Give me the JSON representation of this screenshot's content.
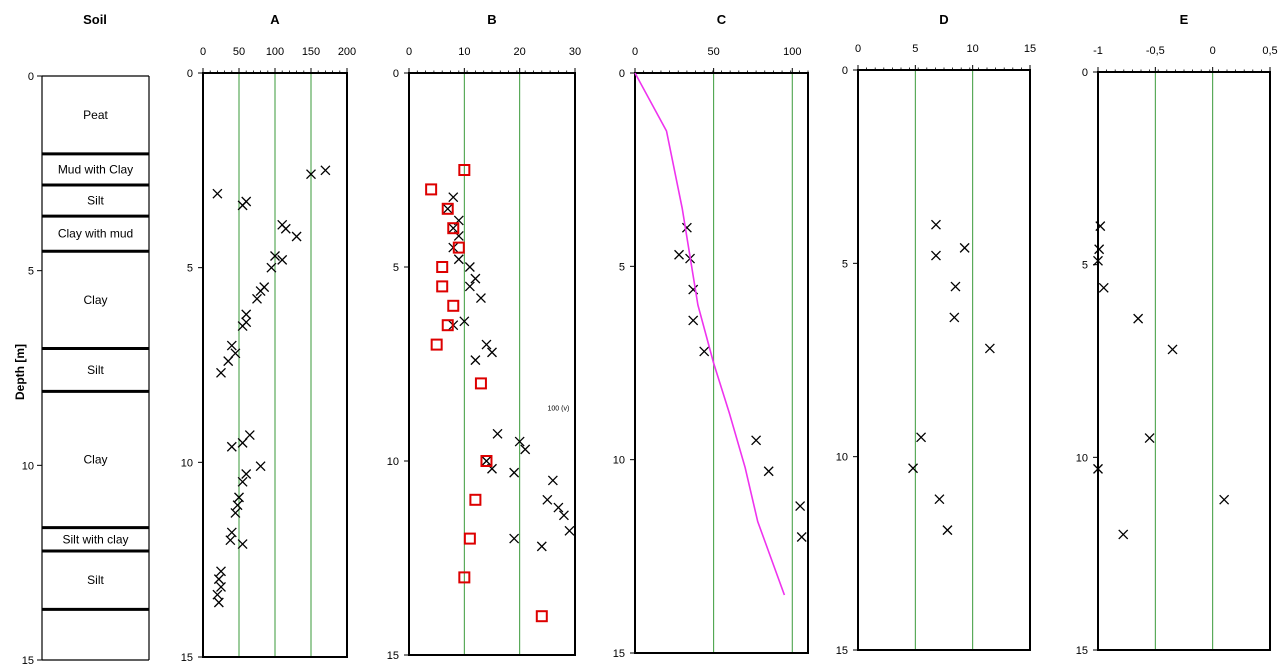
{
  "ylabel": "Depth [m]",
  "soil_column": {
    "title": "Soil",
    "depth_ticks": [
      "0",
      "5",
      "10",
      "15"
    ],
    "layers": [
      {
        "name": "Peat",
        "top": 0,
        "bottom": 2.0
      },
      {
        "name": "Mud with Clay",
        "top": 2.0,
        "bottom": 2.8
      },
      {
        "name": "Silt",
        "top": 2.8,
        "bottom": 3.6
      },
      {
        "name": "Clay with mud",
        "top": 3.6,
        "bottom": 4.5
      },
      {
        "name": "Clay",
        "top": 4.5,
        "bottom": 7.0
      },
      {
        "name": "Silt",
        "top": 7.0,
        "bottom": 8.1
      },
      {
        "name": "Clay",
        "top": 8.1,
        "bottom": 11.6
      },
      {
        "name": "Silt with clay",
        "top": 11.6,
        "bottom": 12.2
      },
      {
        "name": "Silt",
        "top": 12.2,
        "bottom": 13.7
      },
      {
        "name": "",
        "top": 13.7,
        "bottom": 15
      }
    ]
  },
  "chart_data": [
    {
      "type": "scatter",
      "title": "A",
      "xlim": [
        0,
        200
      ],
      "xticks": [
        0,
        50,
        100,
        150,
        200
      ],
      "xtick_labels": [
        "0",
        "50",
        "100",
        "150",
        "200"
      ],
      "ylim": [
        0,
        15
      ],
      "yticks": [
        0,
        5,
        10,
        15
      ],
      "ytick_labels": [
        "0",
        "5",
        "10",
        "15"
      ],
      "gridlines_x": [
        50,
        100,
        150
      ],
      "series": [
        {
          "marker": "x",
          "color": "#000000",
          "points": [
            [
              170,
              2.5
            ],
            [
              150,
              2.6
            ],
            [
              20,
              3.1
            ],
            [
              60,
              3.3
            ],
            [
              55,
              3.4
            ],
            [
              110,
              3.9
            ],
            [
              115,
              4.0
            ],
            [
              130,
              4.2
            ],
            [
              100,
              4.7
            ],
            [
              110,
              4.8
            ],
            [
              95,
              5.0
            ],
            [
              85,
              5.5
            ],
            [
              80,
              5.6
            ],
            [
              75,
              5.8
            ],
            [
              60,
              6.2
            ],
            [
              60,
              6.4
            ],
            [
              55,
              6.5
            ],
            [
              40,
              7.0
            ],
            [
              45,
              7.2
            ],
            [
              35,
              7.4
            ],
            [
              25,
              7.7
            ],
            [
              65,
              9.3
            ],
            [
              55,
              9.5
            ],
            [
              40,
              9.6
            ],
            [
              80,
              10.1
            ],
            [
              60,
              10.3
            ],
            [
              55,
              10.5
            ],
            [
              50,
              10.9
            ],
            [
              48,
              11.1
            ],
            [
              45,
              11.3
            ],
            [
              40,
              11.8
            ],
            [
              38,
              12.0
            ],
            [
              55,
              12.1
            ],
            [
              25,
              12.8
            ],
            [
              22,
              13.0
            ],
            [
              25,
              13.2
            ],
            [
              20,
              13.4
            ],
            [
              22,
              13.6
            ]
          ]
        }
      ]
    },
    {
      "type": "scatter",
      "title": "B",
      "xlim": [
        0,
        30
      ],
      "xticks": [
        0,
        10,
        20,
        30
      ],
      "xtick_labels": [
        "0",
        "10",
        "20",
        "30"
      ],
      "ylim": [
        0,
        15
      ],
      "yticks": [
        0,
        5,
        10,
        15
      ],
      "ytick_labels": [
        "0",
        "5",
        "10",
        "15"
      ],
      "gridlines_x": [
        10,
        20
      ],
      "annotation": {
        "text": "100 (v)",
        "x": 27,
        "y": 8.7
      },
      "series": [
        {
          "marker": "x",
          "color": "#000000",
          "points": [
            [
              8,
              3.2
            ],
            [
              7,
              3.5
            ],
            [
              9,
              3.8
            ],
            [
              8,
              4.0
            ],
            [
              9,
              4.2
            ],
            [
              8,
              4.5
            ],
            [
              9,
              4.8
            ],
            [
              11,
              5.0
            ],
            [
              12,
              5.3
            ],
            [
              11,
              5.5
            ],
            [
              13,
              5.8
            ],
            [
              10,
              6.4
            ],
            [
              8,
              6.5
            ],
            [
              14,
              7.0
            ],
            [
              15,
              7.2
            ],
            [
              12,
              7.4
            ],
            [
              16,
              9.3
            ],
            [
              20,
              9.5
            ],
            [
              21,
              9.7
            ],
            [
              14,
              10.0
            ],
            [
              15,
              10.2
            ],
            [
              19,
              10.3
            ],
            [
              26,
              10.5
            ],
            [
              25,
              11.0
            ],
            [
              27,
              11.2
            ],
            [
              28,
              11.4
            ],
            [
              29,
              11.8
            ],
            [
              19,
              12.0
            ],
            [
              24,
              12.2
            ]
          ]
        },
        {
          "marker": "square",
          "color": "#dd0000",
          "points": [
            [
              10,
              2.5
            ],
            [
              4,
              3.0
            ],
            [
              7,
              3.5
            ],
            [
              8,
              4.0
            ],
            [
              9,
              4.5
            ],
            [
              6,
              5.0
            ],
            [
              6,
              5.5
            ],
            [
              8,
              6.0
            ],
            [
              7,
              6.5
            ],
            [
              5,
              7.0
            ],
            [
              13,
              8.0
            ],
            [
              14,
              10.0
            ],
            [
              12,
              11.0
            ],
            [
              11,
              12.0
            ],
            [
              10,
              13.0
            ],
            [
              24,
              14.0
            ]
          ]
        }
      ]
    },
    {
      "type": "line",
      "title": "C",
      "xlim": [
        0,
        110
      ],
      "xticks": [
        0,
        50,
        100
      ],
      "xtick_labels": [
        "0",
        "50",
        "100"
      ],
      "ylim": [
        0,
        15
      ],
      "yticks": [
        0,
        5,
        10,
        15
      ],
      "ytick_labels": [
        "0",
        "5",
        "10",
        "15"
      ],
      "gridlines_x": [
        50,
        100
      ],
      "series": [
        {
          "marker": "x",
          "color": "#000000",
          "points": [
            [
              33,
              4.0
            ],
            [
              28,
              4.7
            ],
            [
              35,
              4.8
            ],
            [
              37,
              5.6
            ],
            [
              37,
              6.4
            ],
            [
              44,
              7.2
            ],
            [
              77,
              9.5
            ],
            [
              85,
              10.3
            ],
            [
              105,
              11.2
            ],
            [
              106,
              12.0
            ]
          ]
        },
        {
          "marker": "line",
          "color": "#ee33ee",
          "points": [
            [
              0,
              0
            ],
            [
              20,
              1.5
            ],
            [
              30,
              3.5
            ],
            [
              40,
              6.0
            ],
            [
              50,
              7.5
            ],
            [
              60,
              8.8
            ],
            [
              70,
              10.2
            ],
            [
              78,
              11.6
            ],
            [
              95,
              13.5
            ]
          ]
        }
      ]
    },
    {
      "type": "scatter",
      "title": "D",
      "xlim": [
        0,
        15
      ],
      "xticks": [
        0,
        5,
        10,
        15
      ],
      "xtick_labels": [
        "0",
        "5",
        "10",
        "15"
      ],
      "ylim": [
        0,
        15
      ],
      "yticks": [
        0,
        5,
        10,
        15
      ],
      "ytick_labels": [
        "0",
        "5",
        "10",
        "15"
      ],
      "gridlines_x": [
        5,
        10
      ],
      "series": [
        {
          "marker": "x",
          "color": "#000000",
          "points": [
            [
              6.8,
              4.0
            ],
            [
              9.3,
              4.6
            ],
            [
              6.8,
              4.8
            ],
            [
              8.5,
              5.6
            ],
            [
              8.4,
              6.4
            ],
            [
              11.5,
              7.2
            ],
            [
              5.5,
              9.5
            ],
            [
              4.8,
              10.3
            ],
            [
              7.1,
              11.1
            ],
            [
              7.8,
              11.9
            ]
          ]
        }
      ]
    },
    {
      "type": "scatter",
      "title": "E",
      "xlim": [
        -1,
        0.5
      ],
      "xticks": [
        -1,
        -0.5,
        0,
        0.5
      ],
      "xtick_labels": [
        "-1",
        "-0,5",
        "0",
        "0,5"
      ],
      "ylim": [
        0,
        15
      ],
      "yticks": [
        0,
        5,
        10,
        15
      ],
      "ytick_labels": [
        "0",
        "5",
        "10",
        "15"
      ],
      "gridlines_x": [
        -0.5,
        0
      ],
      "series": [
        {
          "marker": "x",
          "color": "#000000",
          "points": [
            [
              -0.98,
              4.0
            ],
            [
              -0.99,
              4.6
            ],
            [
              -1.0,
              4.9
            ],
            [
              -0.95,
              5.6
            ],
            [
              -0.65,
              6.4
            ],
            [
              -0.35,
              7.2
            ],
            [
              -0.55,
              9.5
            ],
            [
              -1.0,
              10.3
            ],
            [
              0.1,
              11.1
            ],
            [
              -0.78,
              12.0
            ]
          ]
        }
      ]
    }
  ]
}
